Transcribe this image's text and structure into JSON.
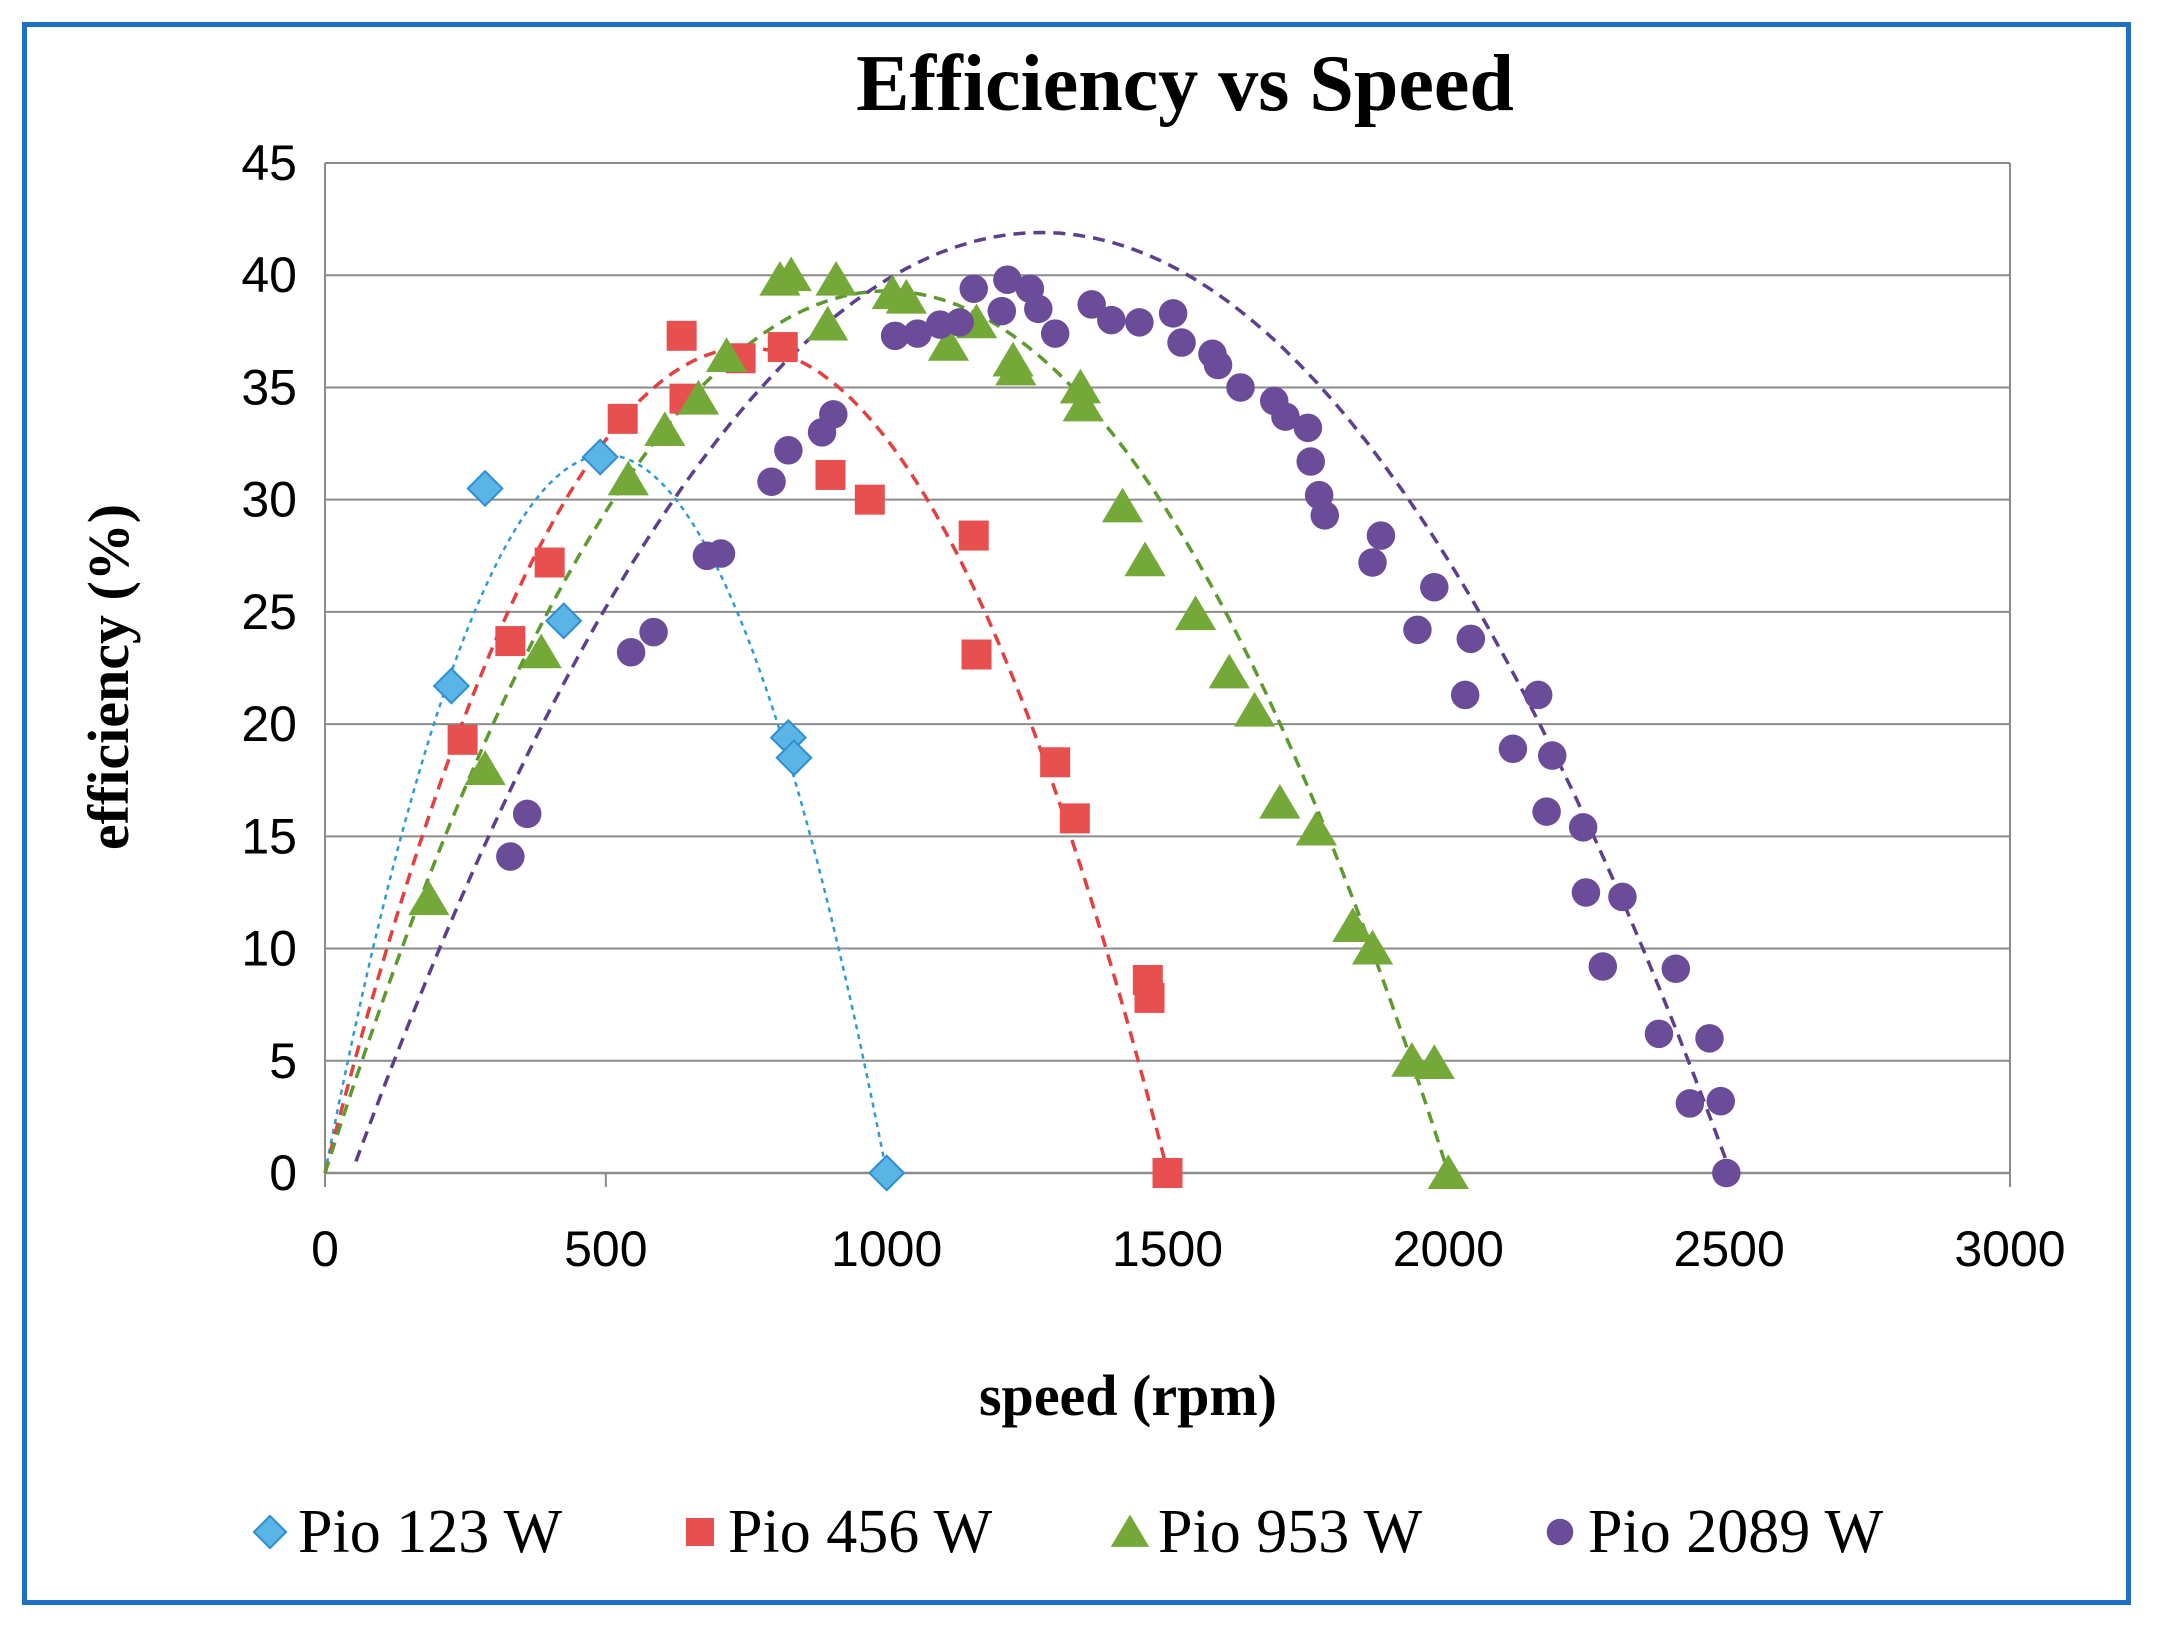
{
  "chart_data": {
    "type": "scatter",
    "title": "Efficiency vs Speed",
    "xlabel": "speed (rpm)",
    "ylabel": "efficiency (%)",
    "xlim": [
      0,
      3000
    ],
    "ylim": [
      0,
      45
    ],
    "xticks": [
      0,
      500,
      1000,
      1500,
      2000,
      2500,
      3000
    ],
    "yticks": [
      0,
      5,
      10,
      15,
      20,
      25,
      30,
      35,
      40,
      45
    ],
    "grid": "horizontal",
    "legend_position": "bottom",
    "series": [
      {
        "name": "Pio 123 W",
        "marker": "diamond",
        "color": "#5ab4e5",
        "line_color": "#2e9bd6",
        "trend": {
          "type": "poly2",
          "a": -0.000128,
          "b": 0.128,
          "c": 0,
          "x_range": [
            0,
            1000
          ]
        },
        "points": [
          [
            225,
            21.7
          ],
          [
            285,
            30.5
          ],
          [
            425,
            24.6
          ],
          [
            490,
            31.9
          ],
          [
            825,
            19.4
          ],
          [
            835,
            18.5
          ],
          [
            1000,
            0
          ]
        ]
      },
      {
        "name": "Pio 456 W",
        "marker": "square",
        "color": "#e8504f",
        "line_color": "#e34040",
        "trend": {
          "type": "poly2",
          "a": -6.53e-05,
          "b": 0.098,
          "c": 0,
          "x_range": [
            0,
            1500
          ]
        },
        "points": [
          [
            245,
            19.3
          ],
          [
            330,
            23.7
          ],
          [
            400,
            27.2
          ],
          [
            530,
            33.6
          ],
          [
            635,
            37.3
          ],
          [
            640,
            34.5
          ],
          [
            740,
            36.3
          ],
          [
            815,
            36.8
          ],
          [
            900,
            31.1
          ],
          [
            970,
            30.0
          ],
          [
            1155,
            28.4
          ],
          [
            1160,
            23.1
          ],
          [
            1300,
            18.3
          ],
          [
            1335,
            15.8
          ],
          [
            1465,
            8.6
          ],
          [
            1468,
            7.8
          ],
          [
            1500,
            0
          ]
        ]
      },
      {
        "name": "Pio 953 W",
        "marker": "triangle",
        "color": "#74a93a",
        "line_color": "#5e9a2f",
        "trend": {
          "type": "poly2",
          "a": -3.93e-05,
          "b": 0.0786,
          "c": 0,
          "x_range": [
            0,
            2000
          ]
        },
        "points": [
          [
            185,
            12.2
          ],
          [
            285,
            18.0
          ],
          [
            385,
            23.2
          ],
          [
            540,
            30.9
          ],
          [
            605,
            33.1
          ],
          [
            665,
            34.5
          ],
          [
            715,
            36.4
          ],
          [
            810,
            39.8
          ],
          [
            830,
            40.0
          ],
          [
            895,
            37.8
          ],
          [
            910,
            39.8
          ],
          [
            1010,
            39.2
          ],
          [
            1035,
            39.0
          ],
          [
            1110,
            36.9
          ],
          [
            1160,
            37.9
          ],
          [
            1225,
            36.2
          ],
          [
            1230,
            35.8
          ],
          [
            1345,
            35.0
          ],
          [
            1350,
            34.2
          ],
          [
            1420,
            29.7
          ],
          [
            1460,
            27.3
          ],
          [
            1550,
            24.9
          ],
          [
            1610,
            22.3
          ],
          [
            1655,
            20.6
          ],
          [
            1700,
            16.5
          ],
          [
            1765,
            15.3
          ],
          [
            1830,
            11.0
          ],
          [
            1865,
            10.0
          ],
          [
            1935,
            5.0
          ],
          [
            1975,
            4.9
          ],
          [
            2000,
            0
          ]
        ]
      },
      {
        "name": "Pio 2089 W",
        "marker": "circle",
        "color": "#6b4c99",
        "line_color": "#5d3f8c",
        "trend": {
          "type": "poly2",
          "a": -2.78e-05,
          "b": 0.0709,
          "c": -3.3,
          "x_range": [
            55,
            2500
          ]
        },
        "points": [
          [
            330,
            14.1
          ],
          [
            360,
            16.0
          ],
          [
            545,
            23.2
          ],
          [
            585,
            24.1
          ],
          [
            680,
            27.5
          ],
          [
            705,
            27.6
          ],
          [
            795,
            30.8
          ],
          [
            825,
            32.2
          ],
          [
            885,
            33.0
          ],
          [
            905,
            33.8
          ],
          [
            1015,
            37.3
          ],
          [
            1055,
            37.4
          ],
          [
            1095,
            37.8
          ],
          [
            1130,
            37.9
          ],
          [
            1155,
            39.4
          ],
          [
            1205,
            38.4
          ],
          [
            1215,
            39.8
          ],
          [
            1255,
            39.4
          ],
          [
            1270,
            38.5
          ],
          [
            1300,
            37.4
          ],
          [
            1365,
            38.7
          ],
          [
            1400,
            38.0
          ],
          [
            1450,
            37.9
          ],
          [
            1510,
            38.3
          ],
          [
            1525,
            37.0
          ],
          [
            1580,
            36.5
          ],
          [
            1590,
            36.0
          ],
          [
            1630,
            35.0
          ],
          [
            1690,
            34.4
          ],
          [
            1710,
            33.7
          ],
          [
            1750,
            33.2
          ],
          [
            1755,
            31.7
          ],
          [
            1770,
            30.2
          ],
          [
            1780,
            29.3
          ],
          [
            1865,
            27.2
          ],
          [
            1880,
            28.4
          ],
          [
            1945,
            24.2
          ],
          [
            1975,
            26.1
          ],
          [
            2030,
            21.3
          ],
          [
            2040,
            23.8
          ],
          [
            2115,
            18.9
          ],
          [
            2160,
            21.3
          ],
          [
            2175,
            16.1
          ],
          [
            2185,
            18.6
          ],
          [
            2240,
            15.4
          ],
          [
            2245,
            12.5
          ],
          [
            2275,
            9.2
          ],
          [
            2310,
            12.3
          ],
          [
            2375,
            6.2
          ],
          [
            2405,
            9.1
          ],
          [
            2430,
            3.1
          ],
          [
            2465,
            6.0
          ],
          [
            2485,
            3.2
          ],
          [
            2495,
            0
          ]
        ]
      }
    ]
  }
}
